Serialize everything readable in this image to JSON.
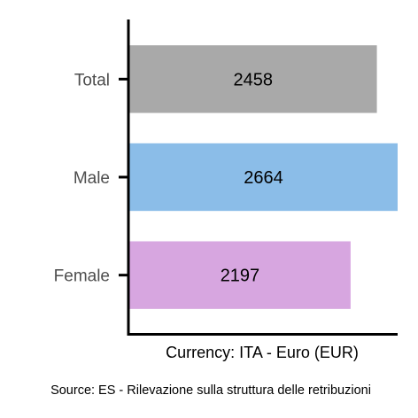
{
  "chart_data": {
    "type": "bar",
    "orientation": "horizontal",
    "categories": [
      "Total",
      "Male",
      "Female"
    ],
    "values": [
      2458,
      2664,
      2197
    ],
    "colors": [
      "#a9a9a9",
      "#8bbde8",
      "#d7a6e0"
    ],
    "xlabel": "Currency: ITA - Euro (EUR)",
    "ylabel": "",
    "xlim": [
      0,
      2664
    ],
    "grid": false,
    "legend": "none"
  },
  "caption": "Source:  ES - Rilevazione sulla struttura delle retribuzioni"
}
